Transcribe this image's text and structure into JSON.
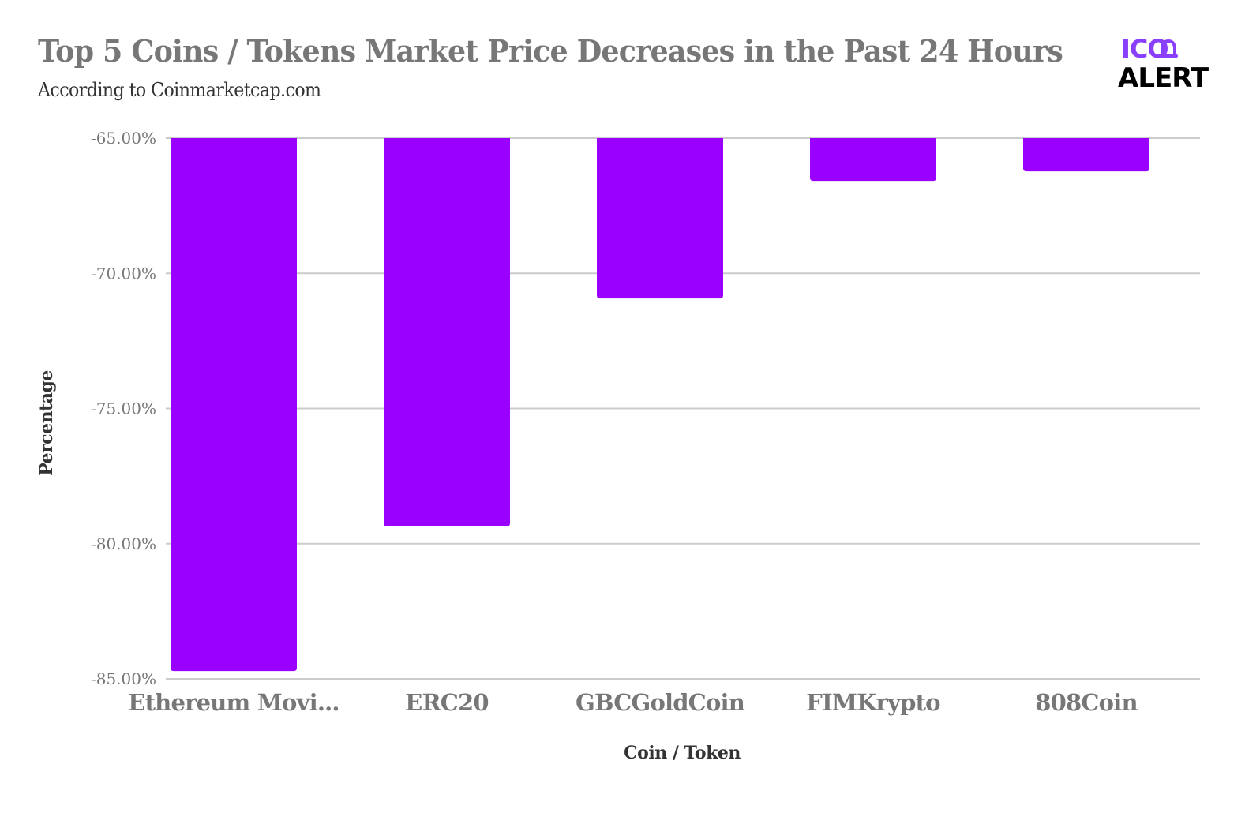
{
  "header": {
    "title": "Top 5 Coins / Tokens Market Price Decreases in the Past 24 Hours",
    "subtitle": "According to Coinmarketcap.com"
  },
  "logo": {
    "line1": "ICO",
    "line2": "ALERT",
    "icon": "bell-icon",
    "accent_color": "#8a3ffc"
  },
  "colors": {
    "bar": "#9900ff",
    "gridline": "#cccccc",
    "tick_text": "#777777",
    "axis_title_text": "#333333"
  },
  "chart_data": {
    "type": "bar",
    "title": "Top 5 Coins / Tokens Market Price Decreases in the Past 24 Hours",
    "subtitle": "According to Coinmarketcap.com",
    "xlabel": "Coin / Token",
    "ylabel": "Percentage",
    "categories": [
      "Ethereum Movi...",
      "ERC20",
      "GBCGoldCoin",
      "FIMKrypto",
      "808Coin"
    ],
    "values": [
      -84.71,
      -79.36,
      -70.93,
      -66.58,
      -66.23
    ],
    "ylim": [
      -85,
      -65
    ],
    "yticks": [
      -65,
      -70,
      -75,
      -80,
      -85
    ],
    "ytick_labels": [
      "-65.00%",
      "-70.00%",
      "-75.00%",
      "-80.00%",
      "-85.00%"
    ],
    "grid": true,
    "legend": "none",
    "bar_baseline": -65
  }
}
